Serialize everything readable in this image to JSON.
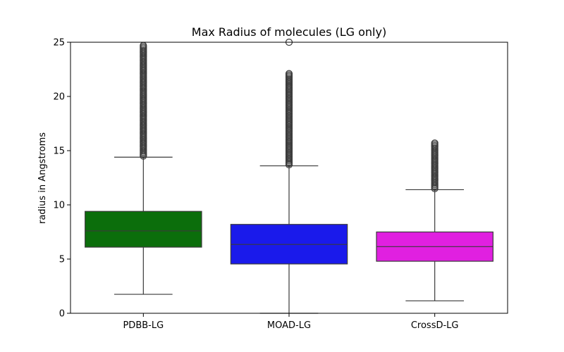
{
  "chart_data": {
    "type": "box",
    "title": "Max Radius of molecules (LG only)",
    "xlabel": "",
    "ylabel": "radius in Angstroms",
    "ylim": [
      0,
      25
    ],
    "yticks": [
      0,
      5,
      10,
      15,
      20,
      25
    ],
    "categories": [
      "PDBB-LG",
      "MOAD-LG",
      "CrossD-LG"
    ],
    "grid": false,
    "series": [
      {
        "category": "PDBB-LG",
        "color": "#0b6e0b",
        "whisker_low": 1.75,
        "q1": 6.1,
        "median": 7.6,
        "q3": 9.4,
        "whisker_high": 14.4,
        "outlier_range": [
          14.5,
          24.7
        ]
      },
      {
        "category": "MOAD-LG",
        "color": "#1a1aeb",
        "whisker_low": 0.0,
        "q1": 4.55,
        "median": 6.35,
        "q3": 8.2,
        "whisker_high": 13.6,
        "outlier_range": [
          13.7,
          22.2
        ],
        "extra_outliers": [
          25.0
        ]
      },
      {
        "category": "CrossD-LG",
        "color": "#e020e0",
        "whisker_low": 1.15,
        "q1": 4.8,
        "median": 6.15,
        "q3": 7.5,
        "whisker_high": 11.4,
        "outlier_range": [
          11.5,
          15.8
        ]
      }
    ]
  }
}
